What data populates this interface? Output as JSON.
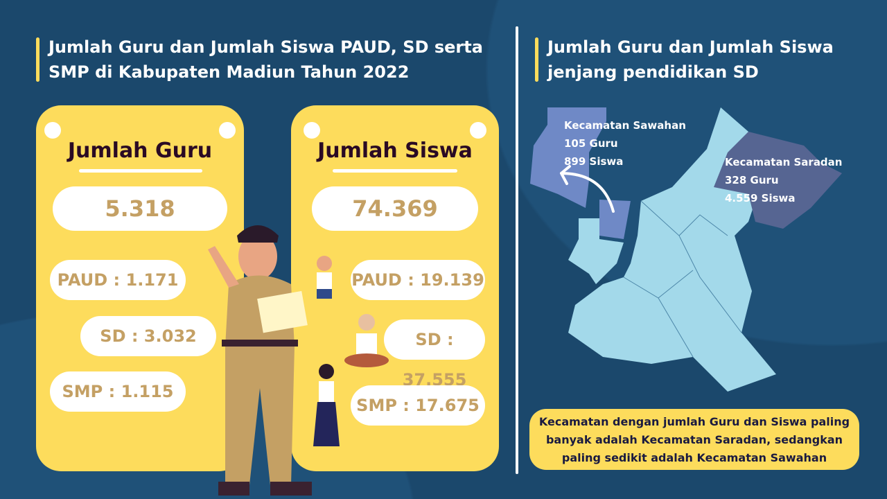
{
  "left": {
    "title_line1": "Jumlah Guru dan Jumlah Siswa PAUD, SD serta",
    "title_line2": "SMP di Kabupaten Madiun Tahun 2022",
    "guru": {
      "heading": "Jumlah Guru",
      "total": "5.318",
      "paud": "PAUD : 1.171",
      "sd": "SD : 3.032",
      "smp": "SMP : 1.115"
    },
    "siswa": {
      "heading": "Jumlah Siswa",
      "total": "74.369",
      "paud": "PAUD : 19.139",
      "sd": "SD : 37.555",
      "smp": "SMP : 17.675"
    }
  },
  "right": {
    "title_line1": "Jumlah Guru dan Jumlah Siswa",
    "title_line2": "jenjang pendidikan SD",
    "sawahan": {
      "name": "Kecamatan Sawahan",
      "guru": "105 Guru",
      "siswa": "899 Siswa"
    },
    "saradan": {
      "name": "Kecamatan Saradan",
      "guru": "328 Guru",
      "siswa": "4.559 Siswa"
    },
    "note_line1": "Kecamatan dengan jumlah Guru dan Siswa paling",
    "note_line2": "banyak adalah Kecamatan Saradan, sedangkan",
    "note_line3": "paling sedikit adalah Kecamatan Sawahan"
  },
  "colors": {
    "background": "#1b486c",
    "card": "#fddc5c",
    "value_text": "#c4a064",
    "map_base": "#a3d9ea",
    "map_sawahan": "#6f89c6",
    "map_saradan": "#566592"
  }
}
